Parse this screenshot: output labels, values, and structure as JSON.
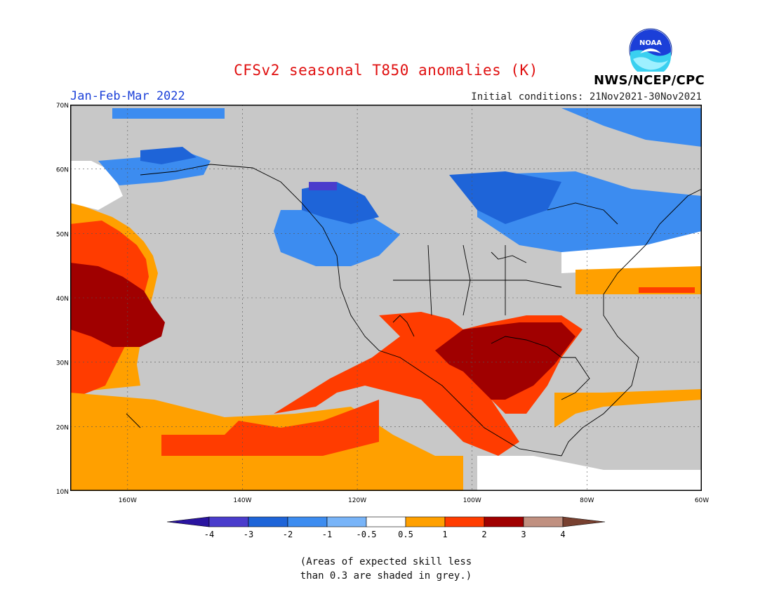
{
  "header": {
    "title": "CFSv2 seasonal T850 anomalies (K)",
    "period": "Jan-Feb-Mar 2022",
    "initial_conditions": "Initial conditions: 21Nov2021-30Nov2021",
    "agency": "NWS/NCEP/CPC",
    "logo_text": "NOAA"
  },
  "map": {
    "projection": "lat-lon",
    "lon_range": [
      -170,
      -60
    ],
    "lat_range": [
      10,
      70
    ],
    "lat_labels": [
      "70N",
      "60N",
      "50N",
      "40N",
      "30N",
      "20N",
      "10N"
    ],
    "lon_labels": [
      "160W",
      "140W",
      "120W",
      "100W",
      "80W",
      "60W"
    ],
    "grey_meaning": "skill < 0.3",
    "colors": {
      "grey": "#c8c8c8",
      "neg4": "#2a14a0",
      "neg3": "#4a3ccc",
      "neg2": "#1e64d8",
      "neg1": "#3c8cf0",
      "neg05": "#78b4f8",
      "neutral": "#ffffff",
      "pos05": "#ffa000",
      "pos1": "#ff3c00",
      "pos2": "#a00000",
      "pos3": "#c09080",
      "pos4": "#784030"
    }
  },
  "legend": {
    "labels": [
      "-4",
      "-3",
      "-2",
      "-1",
      "-0.5",
      "0.5",
      "1",
      "2",
      "3",
      "4"
    ]
  },
  "caption": {
    "line1": "(Areas of expected skill less",
    "line2": "than 0.3 are shaded in grey.)"
  }
}
